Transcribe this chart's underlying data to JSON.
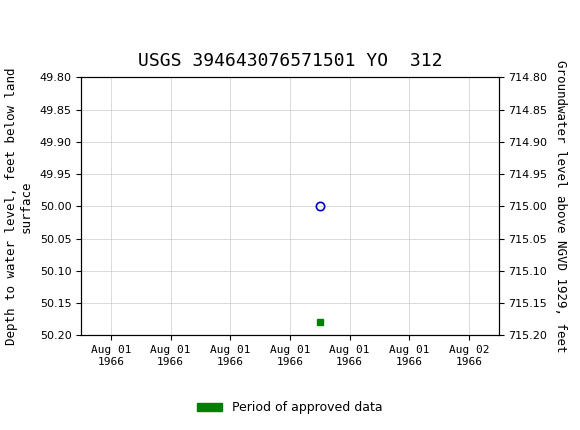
{
  "title": "USGS 394643076571501 YO  312",
  "ylabel_left": "Depth to water level, feet below land\nsurface",
  "ylabel_right": "Groundwater level above NGVD 1929, feet",
  "ylim_left": [
    49.8,
    50.2
  ],
  "ylim_right": [
    714.8,
    715.2
  ],
  "yticks_left": [
    49.8,
    49.85,
    49.9,
    49.95,
    50.0,
    50.05,
    50.1,
    50.15,
    50.2
  ],
  "yticks_right": [
    714.8,
    714.85,
    714.9,
    714.95,
    715.0,
    715.05,
    715.1,
    715.15,
    715.2
  ],
  "data_point_x": 3.5,
  "data_point_y": 50.0,
  "approved_marker_x": 3.5,
  "approved_marker_y": 50.18,
  "x_tick_labels": [
    "Aug 01\n1966",
    "Aug 01\n1966",
    "Aug 01\n1966",
    "Aug 01\n1966",
    "Aug 01\n1966",
    "Aug 01\n1966",
    "Aug 02\n1966"
  ],
  "x_tick_positions": [
    0,
    1,
    2,
    3,
    4,
    5,
    6
  ],
  "xlim": [
    -0.5,
    6.5
  ],
  "header_color": "#006633",
  "point_color": "#0000cc",
  "approved_color": "#008000",
  "grid_color": "#cccccc",
  "bg_color": "#ffffff",
  "legend_label": "Period of approved data",
  "title_fontsize": 13,
  "axis_fontsize": 9,
  "tick_fontsize": 8
}
